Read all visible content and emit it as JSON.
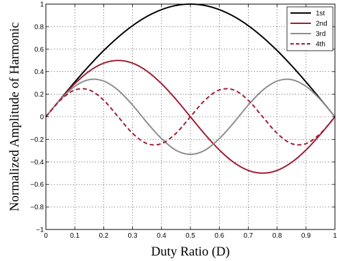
{
  "chart_data": {
    "type": "line",
    "xlabel": "Duty Ratio (D)",
    "ylabel": "Normalized Amplitude of Harmonic",
    "xlim": [
      0,
      1
    ],
    "ylim": [
      -1,
      1
    ],
    "x_ticks": [
      "0",
      "0.1",
      "0.2",
      "0.3",
      "0.4",
      "0.5",
      "0.6",
      "0.7",
      "0.8",
      "0.9",
      "1"
    ],
    "y_ticks": [
      "1",
      "0.8",
      "0.6",
      "0.4",
      "0.2",
      "0",
      "−0.2",
      "−0.4",
      "−0.6",
      "−0.8",
      "−1"
    ],
    "grid": true,
    "legend_position": "top-right",
    "x": [
      0,
      0.05,
      0.1,
      0.15,
      0.2,
      0.25,
      0.3,
      0.35,
      0.4,
      0.45,
      0.5,
      0.55,
      0.6,
      0.65,
      0.7,
      0.75,
      0.8,
      0.85,
      0.9,
      0.95,
      1.0
    ],
    "series": [
      {
        "name": "1st",
        "color": "#000000",
        "dash": "solid",
        "values": [
          0,
          0.156,
          0.309,
          0.454,
          0.588,
          0.707,
          0.809,
          0.891,
          0.951,
          0.988,
          1.0,
          0.988,
          0.951,
          0.891,
          0.809,
          0.707,
          0.588,
          0.454,
          0.309,
          0.156,
          0
        ]
      },
      {
        "name": "2nd",
        "color": "#9e1b32",
        "dash": "solid",
        "values": [
          0,
          0.155,
          0.294,
          0.405,
          0.476,
          0.5,
          0.476,
          0.405,
          0.294,
          0.155,
          0,
          -0.155,
          -0.294,
          -0.405,
          -0.476,
          -0.5,
          -0.476,
          -0.405,
          -0.294,
          -0.155,
          0
        ]
      },
      {
        "name": "3rd",
        "color": "#8c8c8c",
        "dash": "solid",
        "values": [
          0,
          0.151,
          0.27,
          0.33,
          0.317,
          0.236,
          0.104,
          -0.052,
          -0.194,
          -0.297,
          -0.333,
          -0.297,
          -0.194,
          -0.052,
          0.104,
          0.236,
          0.317,
          0.33,
          0.27,
          0.151,
          0
        ]
      },
      {
        "name": "4th",
        "color": "#9e1b32",
        "dash": "dashed",
        "values": [
          0,
          0.147,
          0.238,
          0.238,
          0.147,
          0,
          -0.147,
          -0.238,
          -0.238,
          -0.147,
          0,
          0.147,
          0.238,
          0.238,
          0.147,
          0,
          -0.147,
          -0.238,
          -0.238,
          -0.147,
          0
        ]
      }
    ]
  }
}
